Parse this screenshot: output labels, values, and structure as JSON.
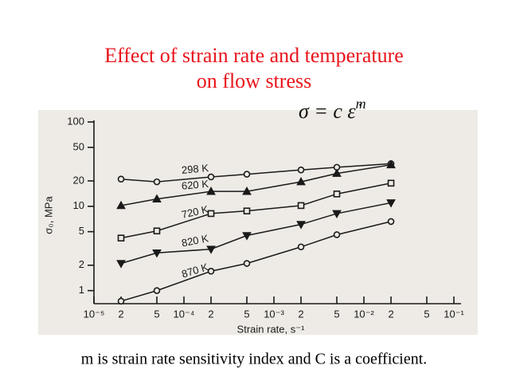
{
  "chart_data": {
    "type": "line",
    "title": [
      "Effect of strain rate and temperature",
      "on flow stress"
    ],
    "formula": "σ = c ε̇",
    "formula_exponent": "m",
    "caption": "m is strain rate sensitivity index and C is a coefficient.",
    "x_label": "Strain rate, s⁻¹",
    "y_label": "σ₀, MPa",
    "log_x": true,
    "log_y": true,
    "x": [
      2e-05,
      5e-05,
      0.0002,
      0.0005,
      0.002,
      0.005,
      0.02
    ],
    "series": [
      {
        "name": "298 K",
        "color": "#1a1a1a",
        "marker": "circle",
        "values": [
          21,
          19.5,
          22.3,
          24,
          27,
          29,
          32
        ]
      },
      {
        "name": "620 K",
        "color": "#1a1a1a",
        "marker": "triangle",
        "values": [
          10.2,
          12.2,
          15,
          15,
          19.5,
          24.5,
          31
        ]
      },
      {
        "name": "720 K",
        "color": "#1a1a1a",
        "marker": "square",
        "values": [
          4.2,
          5.1,
          8.2,
          8.8,
          10.2,
          14,
          18.8
        ]
      },
      {
        "name": "820 K",
        "color": "#1a1a1a",
        "marker": "triangle-down",
        "values": [
          2.1,
          2.8,
          3.1,
          4.5,
          6.1,
          8.2,
          11
        ]
      },
      {
        "name": "870 K",
        "color": "#1a1a1a",
        "marker": "circle",
        "values": [
          0.75,
          1.0,
          1.7,
          2.1,
          3.3,
          4.6,
          6.6
        ]
      }
    ],
    "xlim": [
      1e-05,
      0.12
    ],
    "xticks": [
      {
        "value": 1e-05,
        "label": "10⁻⁵"
      },
      {
        "value": 2e-05,
        "label": "2"
      },
      {
        "value": 5e-05,
        "label": "5"
      },
      {
        "value": 0.0001,
        "label": "10⁻⁴"
      },
      {
        "value": 0.0002,
        "label": "2"
      },
      {
        "value": 0.0005,
        "label": "5"
      },
      {
        "value": 0.001,
        "label": "10⁻³"
      },
      {
        "value": 0.002,
        "label": "2"
      },
      {
        "value": 0.005,
        "label": "5"
      },
      {
        "value": 0.01,
        "label": "10⁻²"
      },
      {
        "value": 0.02,
        "label": "2"
      },
      {
        "value": 0.05,
        "label": "5"
      },
      {
        "value": 0.1,
        "label": "10⁻¹"
      }
    ],
    "ylim": [
      0.7,
      100
    ],
    "yticks": [
      1,
      2,
      5,
      10,
      20,
      50,
      100
    ]
  }
}
